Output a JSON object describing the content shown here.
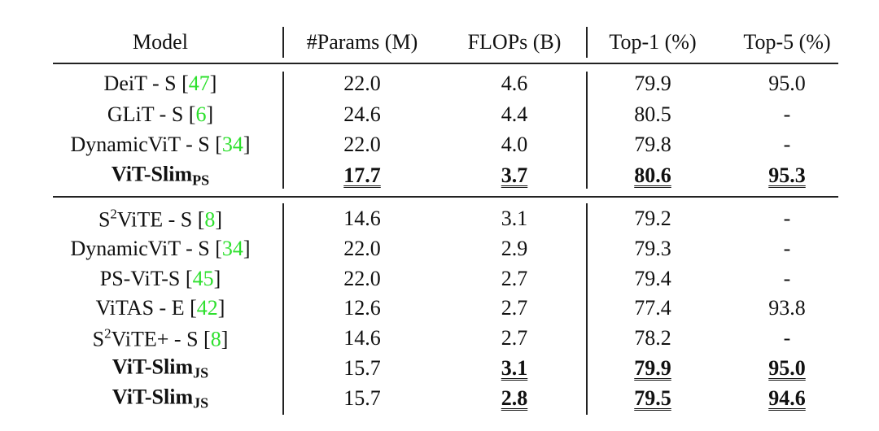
{
  "table": {
    "header": [
      "Model",
      "#Params (M)",
      "FLOPs (B)",
      "Top-1 (%)",
      "Top-5 (%)"
    ],
    "groups": [
      {
        "rows": [
          {
            "model": [
              {
                "t": "DeiT - S ["
              },
              {
                "t": "47",
                "style": "cite"
              },
              {
                "t": "]"
              }
            ],
            "cells": [
              "22.0",
              "4.6",
              "79.9",
              "95.0"
            ]
          },
          {
            "model": [
              {
                "t": "GLiT - S ["
              },
              {
                "t": "6",
                "style": "cite"
              },
              {
                "t": "]"
              }
            ],
            "cells": [
              "24.6",
              "4.4",
              "80.5",
              "-"
            ]
          },
          {
            "model": [
              {
                "t": "DynamicViT - S ["
              },
              {
                "t": "34",
                "style": "cite"
              },
              {
                "t": "]"
              }
            ],
            "cells": [
              "22.0",
              "4.0",
              "79.8",
              "-"
            ]
          },
          {
            "model": [
              {
                "t": "ViT-Slim"
              },
              {
                "t": "PS",
                "style": "sub"
              }
            ],
            "bold": true,
            "cells": [
              "17.7",
              "3.7",
              "80.6",
              "95.3"
            ],
            "emph": [
              0,
              1,
              2,
              3
            ]
          }
        ]
      },
      {
        "rows": [
          {
            "model": [
              {
                "t": "S"
              },
              {
                "t": "2",
                "style": "sup"
              },
              {
                "t": "ViTE - S ["
              },
              {
                "t": "8",
                "style": "cite"
              },
              {
                "t": "]"
              }
            ],
            "cells": [
              "14.6",
              "3.1",
              "79.2",
              "-"
            ]
          },
          {
            "model": [
              {
                "t": "DynamicViT - S ["
              },
              {
                "t": "34",
                "style": "cite"
              },
              {
                "t": "]"
              }
            ],
            "cells": [
              "22.0",
              "2.9",
              "79.3",
              "-"
            ]
          },
          {
            "model": [
              {
                "t": "PS-ViT-S ["
              },
              {
                "t": "45",
                "style": "cite"
              },
              {
                "t": "]"
              }
            ],
            "cells": [
              "22.0",
              "2.7",
              "79.4",
              "-"
            ]
          },
          {
            "model": [
              {
                "t": "ViTAS - E ["
              },
              {
                "t": "42",
                "style": "cite"
              },
              {
                "t": "]"
              }
            ],
            "cells": [
              "12.6",
              "2.7",
              "77.4",
              "93.8"
            ]
          },
          {
            "model": [
              {
                "t": "S"
              },
              {
                "t": "2",
                "style": "sup"
              },
              {
                "t": "ViTE+ - S ["
              },
              {
                "t": "8",
                "style": "cite"
              },
              {
                "t": "]"
              }
            ],
            "cells": [
              "14.6",
              "2.7",
              "78.2",
              "-"
            ]
          },
          {
            "model": [
              {
                "t": "ViT-Slim"
              },
              {
                "t": "JS",
                "style": "sub"
              }
            ],
            "bold": true,
            "cells": [
              "15.7",
              "3.1",
              "79.9",
              "95.0"
            ],
            "emph": [
              1,
              2,
              3
            ]
          },
          {
            "model": [
              {
                "t": "ViT-Slim"
              },
              {
                "t": "JS",
                "style": "sub"
              }
            ],
            "bold": true,
            "cells": [
              "15.7",
              "2.8",
              "79.5",
              "94.6"
            ],
            "emph": [
              1,
              2,
              3
            ]
          }
        ]
      }
    ]
  }
}
